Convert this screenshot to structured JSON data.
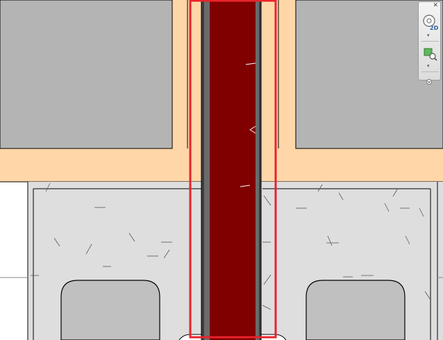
{
  "scene": {
    "colors": {
      "background": "#ffffff",
      "wall_core": "#b4b4b4",
      "wall_finish": "#ffd6a8",
      "floor": "#dedede",
      "opening": "#c0c0c0",
      "selected_element": "#800000",
      "selection_box": "#e8232b",
      "line": "#000000"
    }
  },
  "navigation_bar": {
    "close_glyph": "✕",
    "wheel_label": "2D",
    "wheel_icon": "steering-wheel-icon",
    "zoom_icon": "zoom-region-icon",
    "chevron_glyph": "▾"
  }
}
